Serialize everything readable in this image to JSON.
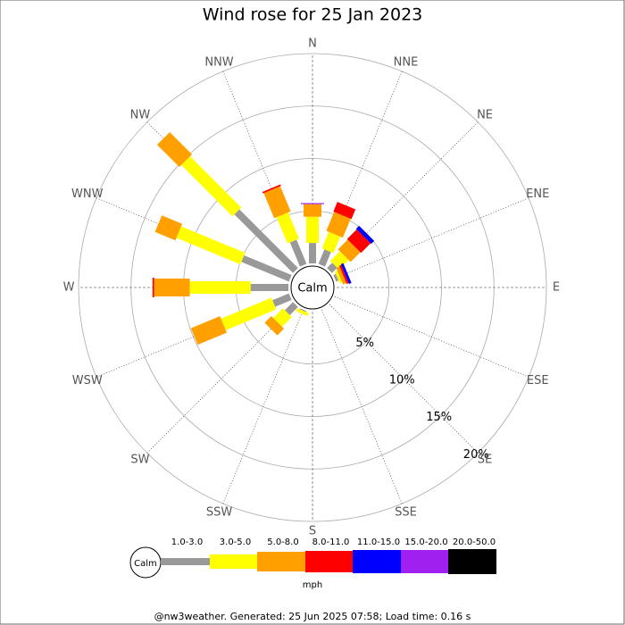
{
  "chart_data": {
    "type": "windrose",
    "title": "Wind rose for 25 Jan 2023",
    "categories": [
      "N",
      "NNE",
      "NE",
      "ENE",
      "E",
      "ESE",
      "SE",
      "SSE",
      "S",
      "SSW",
      "SW",
      "WSW",
      "W",
      "WNW",
      "NW",
      "NNW"
    ],
    "calm_label": "Calm",
    "legend_unit": "mph",
    "footer": "@nw3weather. Generated: 25 Jun 2025 07:58; Load time: 0.16 s",
    "rlim": [
      0,
      20
    ],
    "rticks": [
      {
        "value": 5,
        "label": "5%"
      },
      {
        "value": 10,
        "label": "10%"
      },
      {
        "value": 15,
        "label": "15%"
      },
      {
        "value": 20,
        "label": "20%"
      }
    ],
    "series": [
      {
        "name": "1.0-3.0",
        "color": "#999999",
        "values": [
          1.95,
          1.5,
          0.7,
          0.25,
          0,
          0,
          0,
          0,
          0,
          0.1,
          1.1,
          1.7,
          3.6,
          4.9,
          7.9,
          2.5
        ]
      },
      {
        "name": "3.0-5.0",
        "color": "#ffff00",
        "values": [
          2.5,
          1.7,
          1.3,
          0.25,
          0,
          0,
          0,
          0,
          0,
          0.3,
          1.3,
          5.2,
          5.8,
          6.6,
          6.9,
          2.7
        ]
      },
      {
        "name": "5.0-8.0",
        "color": "#ffa000",
        "values": [
          1.2,
          1.95,
          1.3,
          0.35,
          0,
          0,
          0,
          0,
          0,
          0,
          0.9,
          3.0,
          3.4,
          2.1,
          3.0,
          2.6
        ]
      },
      {
        "name": "8.0-11.0",
        "color": "#ff0000",
        "values": [
          0,
          1.0,
          1.3,
          0.2,
          0,
          0,
          0,
          0,
          0,
          0,
          0,
          0,
          0.15,
          0,
          0,
          0.15
        ]
      },
      {
        "name": "11.0-15.0",
        "color": "#0000ff",
        "values": [
          0,
          0,
          0.4,
          0.25,
          0,
          0,
          0,
          0,
          0,
          0,
          0,
          0,
          0,
          0,
          0,
          0
        ]
      },
      {
        "name": "15.0-20.0",
        "color": "#a020f0",
        "values": [
          0.1,
          0,
          0,
          0,
          0,
          0,
          0,
          0,
          0,
          0,
          0,
          0,
          0,
          0,
          0,
          0
        ]
      },
      {
        "name": "20.0-50.0",
        "color": "#000000",
        "values": [
          0,
          0,
          0,
          0,
          0,
          0,
          0,
          0,
          0,
          0,
          0,
          0,
          0,
          0,
          0,
          0
        ]
      }
    ]
  }
}
